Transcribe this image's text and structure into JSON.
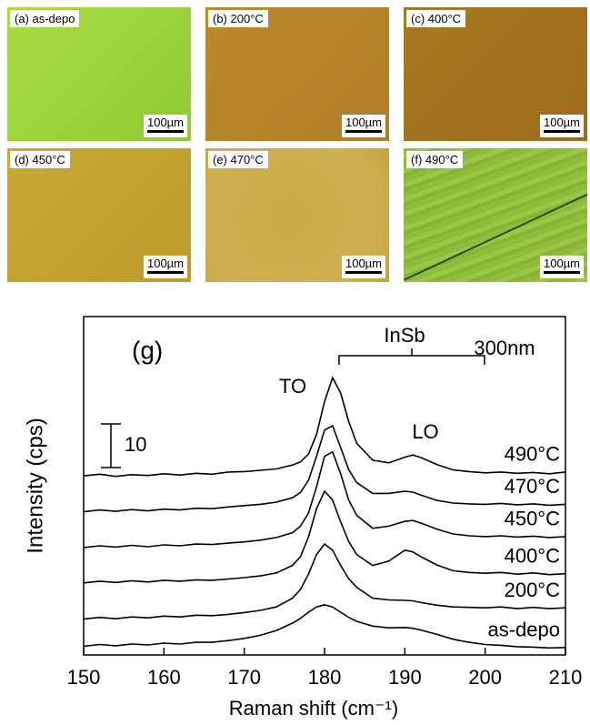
{
  "panels": [
    {
      "label": "(a) as-depo",
      "scale": "100µm"
    },
    {
      "label": "(b) 200°C",
      "scale": "100µm"
    },
    {
      "label": "(c) 400°C",
      "scale": "100µm"
    },
    {
      "label": "(d) 450°C",
      "scale": "100µm"
    },
    {
      "label": "(e) 470°C",
      "scale": "100µm"
    },
    {
      "label": "(f) 490°C",
      "scale": "100µm"
    }
  ],
  "chart_data": {
    "type": "line",
    "panel_label": "(g)",
    "peak_group": "InSb",
    "to_label": "TO",
    "lo_label": "LO",
    "thickness": "300nm",
    "scale_bar": 10,
    "x_label": "Raman shift (cm⁻¹)",
    "y_label": "Intensity (cps)",
    "xlim": [
      150,
      210
    ],
    "xticks": [
      150,
      160,
      170,
      180,
      190,
      200,
      210
    ],
    "ylim": [
      0,
      77.5
    ],
    "x": [
      150,
      152,
      154,
      156,
      158,
      160,
      162,
      164,
      166,
      168,
      170,
      172,
      174,
      176,
      177,
      178,
      179,
      180,
      181,
      182,
      183,
      184,
      186,
      188,
      190,
      191,
      192,
      194,
      196,
      198,
      200,
      202,
      204,
      206,
      208,
      210
    ],
    "series": [
      {
        "name": "490°C",
        "color": "#000000",
        "values": [
          41.0,
          41.4,
          40.9,
          41.3,
          41.1,
          41.5,
          41.2,
          41.6,
          41.4,
          41.9,
          42.0,
          42.3,
          42.6,
          43.5,
          44.2,
          46.0,
          50.5,
          58.0,
          63.5,
          60.0,
          53.5,
          48.5,
          44.6,
          44.0,
          45.3,
          45.8,
          45.2,
          43.6,
          42.4,
          42.0,
          41.7,
          41.9,
          41.6,
          41.8,
          41.5,
          41.9
        ]
      },
      {
        "name": "470°C",
        "color": "#000000",
        "values": [
          32.8,
          33.2,
          32.9,
          33.3,
          33.0,
          33.4,
          33.2,
          33.6,
          33.5,
          33.9,
          34.2,
          34.5,
          35.0,
          36.0,
          37.2,
          40.0,
          45.5,
          51.5,
          52.5,
          47.5,
          42.5,
          39.5,
          37.0,
          37.0,
          37.5,
          37.3,
          36.6,
          35.4,
          34.8,
          34.6,
          34.5,
          34.7,
          34.4,
          34.6,
          34.3,
          34.5
        ]
      },
      {
        "name": "450°C",
        "color": "#000000",
        "values": [
          24.6,
          25.0,
          24.7,
          25.1,
          24.8,
          25.2,
          25.0,
          25.4,
          25.3,
          25.6,
          25.9,
          26.3,
          26.9,
          28.0,
          29.5,
          32.5,
          38.5,
          45.5,
          46.5,
          41.5,
          35.5,
          32.0,
          29.0,
          29.5,
          30.6,
          30.8,
          30.2,
          28.8,
          27.7,
          27.3,
          27.1,
          27.3,
          27.0,
          27.2,
          26.9,
          27.1
        ]
      },
      {
        "name": "400°C",
        "color": "#000000",
        "values": [
          16.5,
          16.9,
          16.6,
          17.0,
          16.7,
          17.1,
          16.9,
          17.2,
          17.1,
          17.4,
          17.7,
          18.1,
          18.8,
          20.5,
          22.5,
          27.0,
          33.5,
          37.5,
          35.5,
          30.5,
          26.0,
          23.0,
          20.5,
          21.5,
          24.0,
          23.6,
          22.5,
          20.6,
          19.3,
          18.9,
          18.7,
          18.9,
          18.5,
          18.8,
          18.4,
          18.6
        ]
      },
      {
        "name": "200°C",
        "color": "#000000",
        "values": [
          8.2,
          8.6,
          8.3,
          8.7,
          8.5,
          8.9,
          8.7,
          9.1,
          9.0,
          9.3,
          9.7,
          10.2,
          11.0,
          13.0,
          15.0,
          18.5,
          23.0,
          25.4,
          24.0,
          20.5,
          17.5,
          15.5,
          13.0,
          12.6,
          12.5,
          12.4,
          12.0,
          11.4,
          11.0,
          10.9,
          10.8,
          11.0,
          10.6,
          10.9,
          10.6,
          10.8
        ]
      },
      {
        "name": "as-depo",
        "color": "#000000",
        "values": [
          2.0,
          2.4,
          2.1,
          2.5,
          2.3,
          2.7,
          2.5,
          2.9,
          2.9,
          3.3,
          3.8,
          4.5,
          5.6,
          7.3,
          8.4,
          9.8,
          11.0,
          11.5,
          11.0,
          9.8,
          8.6,
          7.7,
          6.6,
          6.2,
          6.3,
          6.1,
          5.7,
          4.7,
          3.6,
          2.9,
          2.4,
          2.2,
          1.9,
          1.8,
          1.6,
          1.7
        ]
      }
    ]
  }
}
